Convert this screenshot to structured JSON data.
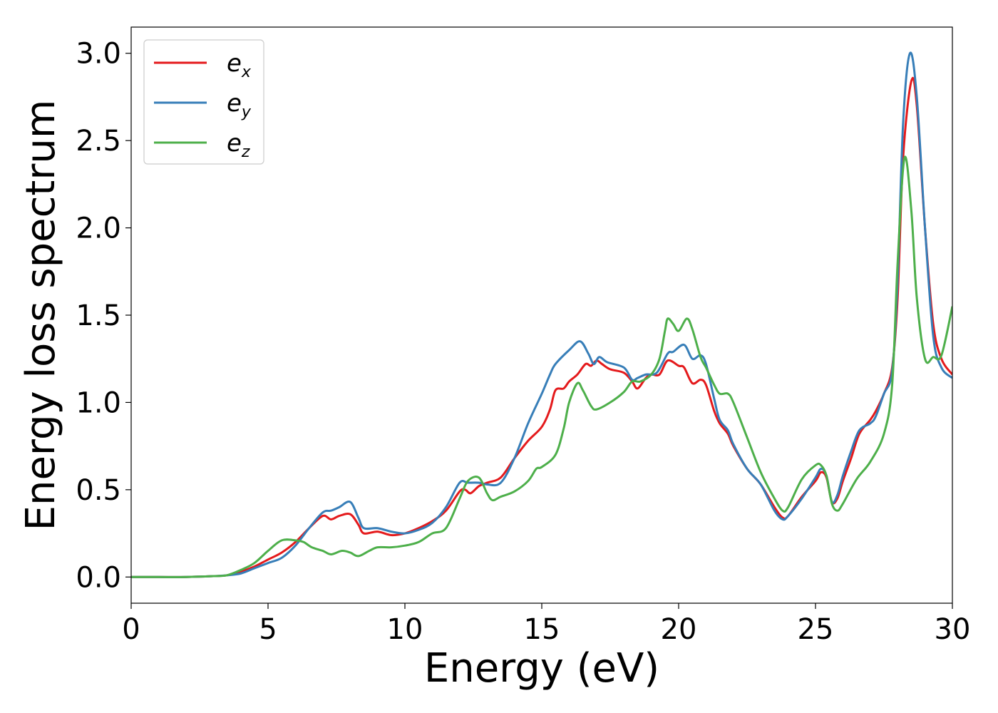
{
  "chart_data": {
    "type": "line",
    "title": "",
    "xlabel": "Energy (eV)",
    "ylabel": "Energy loss spectrum",
    "xlim": [
      0,
      30
    ],
    "ylim": [
      -0.15,
      3.15
    ],
    "xticks": [
      "0",
      "5",
      "10",
      "15",
      "20",
      "25",
      "30"
    ],
    "yticks": [
      "0.0",
      "0.5",
      "1.0",
      "1.5",
      "2.0",
      "2.5",
      "3.0"
    ],
    "grid": false,
    "legend_placement": "top-left",
    "series": [
      {
        "name": "e",
        "subscript": "x",
        "color": "#e41a1c",
        "points": [
          [
            0,
            0
          ],
          [
            1,
            0
          ],
          [
            2,
            0
          ],
          [
            3,
            0.005
          ],
          [
            3.5,
            0.01
          ],
          [
            4,
            0.03
          ],
          [
            4.5,
            0.06
          ],
          [
            5,
            0.1
          ],
          [
            5.5,
            0.14
          ],
          [
            6,
            0.2
          ],
          [
            6.5,
            0.28
          ],
          [
            7,
            0.35
          ],
          [
            7.3,
            0.33
          ],
          [
            7.6,
            0.35
          ],
          [
            8,
            0.36
          ],
          [
            8.3,
            0.3
          ],
          [
            8.5,
            0.25
          ],
          [
            9,
            0.26
          ],
          [
            9.5,
            0.24
          ],
          [
            10,
            0.25
          ],
          [
            10.5,
            0.28
          ],
          [
            11,
            0.32
          ],
          [
            11.5,
            0.38
          ],
          [
            12,
            0.49
          ],
          [
            12.2,
            0.5
          ],
          [
            12.4,
            0.48
          ],
          [
            12.7,
            0.52
          ],
          [
            13,
            0.54
          ],
          [
            13.5,
            0.57
          ],
          [
            14,
            0.68
          ],
          [
            14.5,
            0.78
          ],
          [
            15,
            0.86
          ],
          [
            15.3,
            0.96
          ],
          [
            15.5,
            1.07
          ],
          [
            15.8,
            1.08
          ],
          [
            16,
            1.12
          ],
          [
            16.3,
            1.16
          ],
          [
            16.6,
            1.22
          ],
          [
            16.8,
            1.21
          ],
          [
            17,
            1.24
          ],
          [
            17.2,
            1.22
          ],
          [
            17.5,
            1.19
          ],
          [
            18,
            1.17
          ],
          [
            18.3,
            1.12
          ],
          [
            18.5,
            1.08
          ],
          [
            18.8,
            1.14
          ],
          [
            19,
            1.16
          ],
          [
            19.3,
            1.16
          ],
          [
            19.6,
            1.24
          ],
          [
            20,
            1.21
          ],
          [
            20.2,
            1.2
          ],
          [
            20.5,
            1.11
          ],
          [
            20.8,
            1.13
          ],
          [
            21,
            1.1
          ],
          [
            21.3,
            0.95
          ],
          [
            21.5,
            0.88
          ],
          [
            21.8,
            0.82
          ],
          [
            22,
            0.75
          ],
          [
            22.5,
            0.62
          ],
          [
            23,
            0.53
          ],
          [
            23.5,
            0.4
          ],
          [
            23.8,
            0.34
          ],
          [
            24,
            0.35
          ],
          [
            24.5,
            0.46
          ],
          [
            25,
            0.55
          ],
          [
            25.2,
            0.6
          ],
          [
            25.4,
            0.57
          ],
          [
            25.6,
            0.43
          ],
          [
            25.8,
            0.45
          ],
          [
            26,
            0.55
          ],
          [
            26.3,
            0.68
          ],
          [
            26.6,
            0.82
          ],
          [
            27,
            0.9
          ],
          [
            27.2,
            0.95
          ],
          [
            27.5,
            1.05
          ],
          [
            27.8,
            1.2
          ],
          [
            28,
            1.6
          ],
          [
            28.2,
            2.4
          ],
          [
            28.5,
            2.84
          ],
          [
            28.7,
            2.7
          ],
          [
            29,
            2.0
          ],
          [
            29.3,
            1.45
          ],
          [
            29.6,
            1.25
          ],
          [
            30,
            1.16
          ]
        ]
      },
      {
        "name": "e",
        "subscript": "y",
        "color": "#377eb8",
        "points": [
          [
            0,
            0
          ],
          [
            1,
            0
          ],
          [
            2,
            0
          ],
          [
            3,
            0.005
          ],
          [
            3.5,
            0.01
          ],
          [
            4,
            0.02
          ],
          [
            4.5,
            0.05
          ],
          [
            5,
            0.08
          ],
          [
            5.5,
            0.11
          ],
          [
            6,
            0.18
          ],
          [
            6.5,
            0.28
          ],
          [
            7,
            0.37
          ],
          [
            7.3,
            0.38
          ],
          [
            7.6,
            0.4
          ],
          [
            8,
            0.43
          ],
          [
            8.3,
            0.34
          ],
          [
            8.5,
            0.28
          ],
          [
            9,
            0.28
          ],
          [
            9.5,
            0.26
          ],
          [
            10,
            0.25
          ],
          [
            10.5,
            0.27
          ],
          [
            11,
            0.31
          ],
          [
            11.5,
            0.4
          ],
          [
            12,
            0.54
          ],
          [
            12.3,
            0.54
          ],
          [
            12.7,
            0.54
          ],
          [
            13,
            0.53
          ],
          [
            13.5,
            0.54
          ],
          [
            14,
            0.68
          ],
          [
            14.5,
            0.88
          ],
          [
            15,
            1.05
          ],
          [
            15.3,
            1.16
          ],
          [
            15.5,
            1.22
          ],
          [
            16,
            1.3
          ],
          [
            16.4,
            1.35
          ],
          [
            16.7,
            1.28
          ],
          [
            16.9,
            1.22
          ],
          [
            17.1,
            1.26
          ],
          [
            17.4,
            1.23
          ],
          [
            18,
            1.2
          ],
          [
            18.3,
            1.13
          ],
          [
            18.5,
            1.14
          ],
          [
            18.8,
            1.16
          ],
          [
            19.2,
            1.17
          ],
          [
            19.6,
            1.28
          ],
          [
            19.8,
            1.29
          ],
          [
            20.2,
            1.33
          ],
          [
            20.5,
            1.25
          ],
          [
            20.8,
            1.27
          ],
          [
            21,
            1.22
          ],
          [
            21.3,
            1.02
          ],
          [
            21.5,
            0.9
          ],
          [
            21.8,
            0.84
          ],
          [
            22,
            0.76
          ],
          [
            22.5,
            0.62
          ],
          [
            23,
            0.53
          ],
          [
            23.5,
            0.38
          ],
          [
            23.8,
            0.33
          ],
          [
            24,
            0.35
          ],
          [
            24.5,
            0.45
          ],
          [
            25,
            0.57
          ],
          [
            25.2,
            0.62
          ],
          [
            25.4,
            0.58
          ],
          [
            25.6,
            0.43
          ],
          [
            25.8,
            0.47
          ],
          [
            26,
            0.58
          ],
          [
            26.3,
            0.72
          ],
          [
            26.6,
            0.84
          ],
          [
            27,
            0.88
          ],
          [
            27.2,
            0.92
          ],
          [
            27.5,
            1.05
          ],
          [
            27.8,
            1.18
          ],
          [
            28,
            1.7
          ],
          [
            28.2,
            2.6
          ],
          [
            28.45,
            3.0
          ],
          [
            28.7,
            2.75
          ],
          [
            29,
            2.0
          ],
          [
            29.3,
            1.38
          ],
          [
            29.6,
            1.2
          ],
          [
            30,
            1.14
          ]
        ]
      },
      {
        "name": "e",
        "subscript": "z",
        "color": "#4daf4a",
        "points": [
          [
            0,
            0
          ],
          [
            1,
            0
          ],
          [
            2,
            0
          ],
          [
            3,
            0.005
          ],
          [
            3.5,
            0.01
          ],
          [
            4,
            0.04
          ],
          [
            4.5,
            0.08
          ],
          [
            5,
            0.15
          ],
          [
            5.5,
            0.21
          ],
          [
            6,
            0.21
          ],
          [
            6.3,
            0.2
          ],
          [
            6.6,
            0.17
          ],
          [
            7,
            0.15
          ],
          [
            7.3,
            0.13
          ],
          [
            7.7,
            0.15
          ],
          [
            8,
            0.14
          ],
          [
            8.3,
            0.12
          ],
          [
            8.7,
            0.15
          ],
          [
            9,
            0.17
          ],
          [
            9.5,
            0.17
          ],
          [
            10,
            0.18
          ],
          [
            10.5,
            0.2
          ],
          [
            11,
            0.25
          ],
          [
            11.5,
            0.28
          ],
          [
            12,
            0.45
          ],
          [
            12.3,
            0.55
          ],
          [
            12.7,
            0.57
          ],
          [
            13,
            0.48
          ],
          [
            13.2,
            0.44
          ],
          [
            13.5,
            0.46
          ],
          [
            14,
            0.49
          ],
          [
            14.5,
            0.55
          ],
          [
            14.8,
            0.62
          ],
          [
            15,
            0.63
          ],
          [
            15.5,
            0.7
          ],
          [
            15.8,
            0.85
          ],
          [
            16,
            1.0
          ],
          [
            16.3,
            1.11
          ],
          [
            16.5,
            1.07
          ],
          [
            16.8,
            0.98
          ],
          [
            17,
            0.96
          ],
          [
            17.5,
            1.0
          ],
          [
            18,
            1.06
          ],
          [
            18.3,
            1.12
          ],
          [
            18.6,
            1.12
          ],
          [
            19,
            1.16
          ],
          [
            19.3,
            1.25
          ],
          [
            19.5,
            1.41
          ],
          [
            19.6,
            1.48
          ],
          [
            19.8,
            1.45
          ],
          [
            20,
            1.41
          ],
          [
            20.3,
            1.48
          ],
          [
            20.5,
            1.42
          ],
          [
            20.8,
            1.26
          ],
          [
            21,
            1.2
          ],
          [
            21.3,
            1.1
          ],
          [
            21.5,
            1.05
          ],
          [
            21.8,
            1.05
          ],
          [
            22,
            1.0
          ],
          [
            22.5,
            0.8
          ],
          [
            23,
            0.6
          ],
          [
            23.5,
            0.45
          ],
          [
            23.8,
            0.38
          ],
          [
            24,
            0.4
          ],
          [
            24.5,
            0.56
          ],
          [
            25,
            0.64
          ],
          [
            25.2,
            0.64
          ],
          [
            25.4,
            0.58
          ],
          [
            25.6,
            0.42
          ],
          [
            25.8,
            0.38
          ],
          [
            26,
            0.42
          ],
          [
            26.5,
            0.56
          ],
          [
            27,
            0.66
          ],
          [
            27.5,
            0.82
          ],
          [
            27.8,
            1.1
          ],
          [
            28,
            1.8
          ],
          [
            28.25,
            2.4
          ],
          [
            28.5,
            2.1
          ],
          [
            28.7,
            1.6
          ],
          [
            29,
            1.25
          ],
          [
            29.3,
            1.26
          ],
          [
            29.6,
            1.27
          ],
          [
            30,
            1.55
          ]
        ]
      }
    ]
  }
}
